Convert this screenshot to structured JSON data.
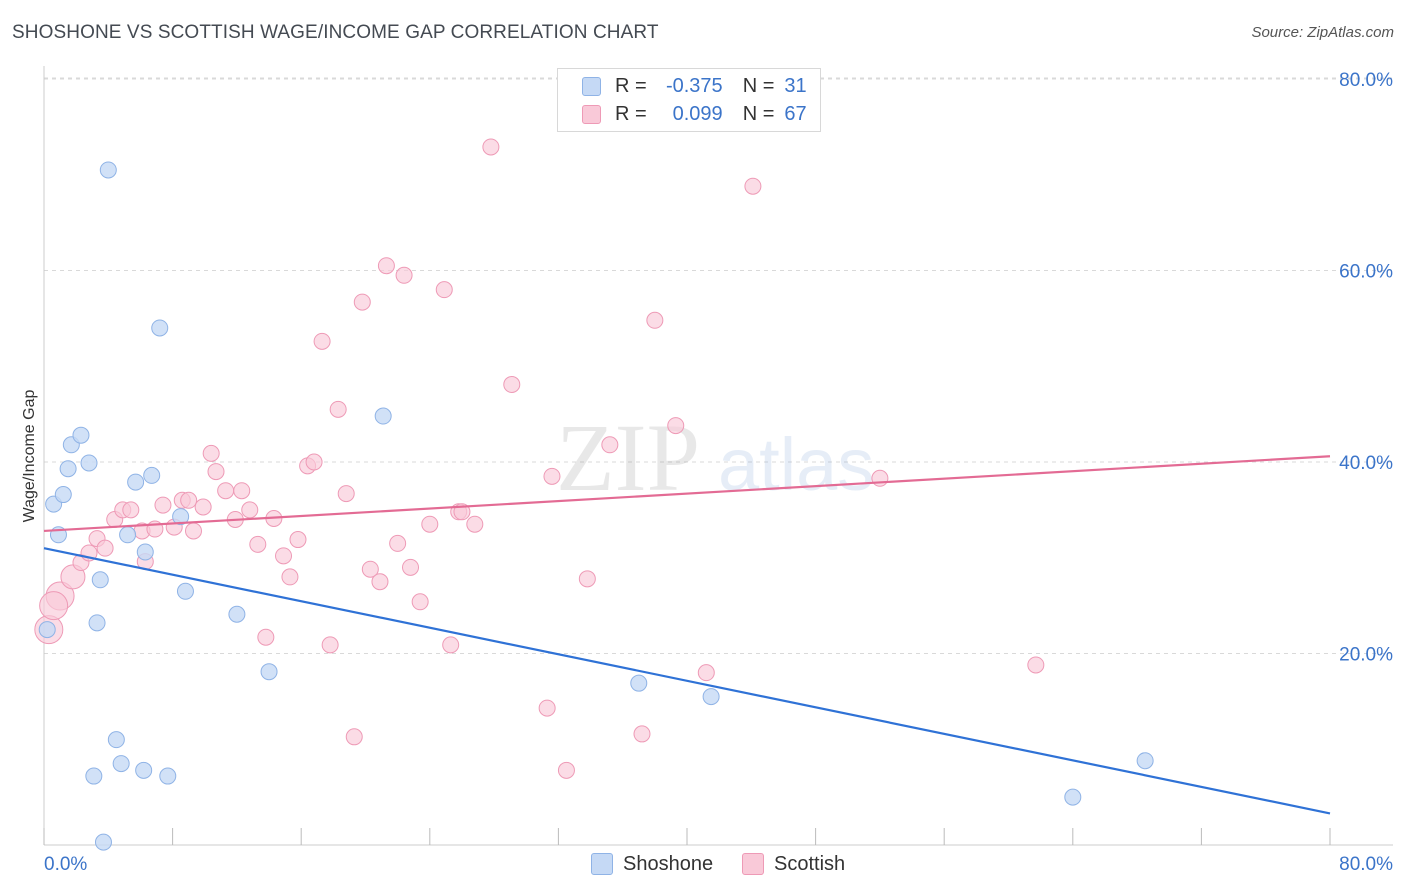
{
  "title": "SHOSHONE VS SCOTTISH WAGE/INCOME GAP CORRELATION CHART",
  "source": "Source: ZipAtlas.com",
  "watermark": {
    "zip": "ZIP",
    "atlas": "atlas"
  },
  "legend": {
    "r_label": "R =",
    "n_label": "N =",
    "rows": [
      {
        "name": "Shoshone",
        "r": "-0.375",
        "n": "31"
      },
      {
        "name": "Scottish",
        "r": "0.099",
        "n": "67"
      }
    ]
  },
  "colors": {
    "shoshone_fill": "#c5d9f5",
    "shoshone_stroke": "#8fb3e6",
    "shoshone_line": "#2f72d6",
    "scottish_fill": "#f9c9d8",
    "scottish_stroke": "#ee9ab6",
    "scottish_line": "#e36b94",
    "tick_text": "#3b74c9",
    "grid": "#d9d9d9"
  },
  "chart_data": {
    "type": "scatter",
    "title": "SHOSHONE VS SCOTTISH WAGE/INCOME GAP CORRELATION CHART",
    "xlabel": "",
    "ylabel": "Wage/Income Gap",
    "xlim": [
      0,
      80
    ],
    "ylim": [
      0,
      80
    ],
    "x_tick_labels": [
      "0.0%",
      "80.0%"
    ],
    "y_ticks": [
      20,
      40,
      60,
      80
    ],
    "y_tick_labels": [
      "20.0%",
      "40.0%",
      "60.0%",
      "80.0%"
    ],
    "grid": true,
    "legend_position": "top-center",
    "series": [
      {
        "name": "Shoshone",
        "points": [
          [
            0.6,
            35.6
          ],
          [
            0.9,
            32.4
          ],
          [
            1.2,
            36.6
          ],
          [
            1.5,
            39.3
          ],
          [
            1.7,
            41.8
          ],
          [
            2.3,
            42.8
          ],
          [
            2.8,
            39.9
          ],
          [
            3.5,
            27.7
          ],
          [
            3.3,
            23.2
          ],
          [
            4.0,
            70.5
          ],
          [
            5.2,
            32.4
          ],
          [
            5.7,
            37.9
          ],
          [
            6.3,
            30.6
          ],
          [
            6.7,
            38.6
          ],
          [
            7.2,
            54.0
          ],
          [
            8.5,
            34.3
          ],
          [
            8.8,
            26.5
          ],
          [
            12.0,
            24.1
          ],
          [
            14.0,
            18.1
          ],
          [
            21.1,
            44.8
          ],
          [
            4.5,
            11.0
          ],
          [
            4.8,
            8.5
          ],
          [
            6.2,
            7.8
          ],
          [
            7.7,
            7.2
          ],
          [
            3.1,
            7.2
          ],
          [
            3.7,
            0.3
          ],
          [
            0.2,
            22.5
          ],
          [
            37.0,
            16.9
          ],
          [
            41.5,
            15.5
          ],
          [
            64.0,
            5.0
          ],
          [
            68.5,
            8.8
          ]
        ],
        "trend": {
          "x": [
            0,
            80
          ],
          "y": [
            31.0,
            3.3
          ]
        }
      },
      {
        "name": "Scottish",
        "points": [
          [
            0.3,
            22.5
          ],
          [
            1.0,
            26.0
          ],
          [
            1.8,
            28.0
          ],
          [
            2.3,
            29.5
          ],
          [
            2.8,
            30.5
          ],
          [
            3.3,
            32.0
          ],
          [
            3.8,
            31.0
          ],
          [
            4.4,
            34.0
          ],
          [
            4.9,
            35.0
          ],
          [
            5.4,
            35.0
          ],
          [
            6.1,
            32.8
          ],
          [
            6.3,
            29.6
          ],
          [
            6.9,
            33.0
          ],
          [
            7.4,
            35.5
          ],
          [
            8.1,
            33.2
          ],
          [
            8.6,
            36.0
          ],
          [
            9.0,
            36.0
          ],
          [
            9.3,
            32.8
          ],
          [
            9.9,
            35.3
          ],
          [
            10.4,
            40.9
          ],
          [
            10.7,
            39.0
          ],
          [
            11.3,
            37.0
          ],
          [
            11.9,
            34.0
          ],
          [
            12.3,
            37.0
          ],
          [
            12.8,
            35.0
          ],
          [
            13.3,
            31.4
          ],
          [
            13.8,
            21.7
          ],
          [
            14.3,
            34.1
          ],
          [
            14.9,
            30.2
          ],
          [
            15.3,
            28.0
          ],
          [
            15.8,
            31.9
          ],
          [
            16.4,
            39.6
          ],
          [
            16.8,
            40.0
          ],
          [
            17.3,
            52.6
          ],
          [
            17.8,
            20.9
          ],
          [
            18.3,
            45.5
          ],
          [
            18.8,
            36.7
          ],
          [
            19.3,
            11.3
          ],
          [
            19.8,
            56.7
          ],
          [
            20.3,
            28.8
          ],
          [
            20.9,
            27.5
          ],
          [
            21.3,
            60.5
          ],
          [
            22.0,
            31.5
          ],
          [
            22.4,
            59.5
          ],
          [
            22.8,
            29.0
          ],
          [
            23.4,
            25.4
          ],
          [
            24.0,
            33.5
          ],
          [
            24.9,
            58.0
          ],
          [
            25.3,
            20.9
          ],
          [
            25.8,
            34.8
          ],
          [
            26.0,
            34.8
          ],
          [
            26.8,
            33.5
          ],
          [
            27.8,
            72.9
          ],
          [
            29.1,
            48.1
          ],
          [
            31.3,
            14.3
          ],
          [
            31.6,
            38.5
          ],
          [
            32.5,
            7.8
          ],
          [
            33.8,
            27.8
          ],
          [
            35.2,
            41.8
          ],
          [
            37.2,
            11.6
          ],
          [
            38.0,
            54.8
          ],
          [
            39.3,
            43.8
          ],
          [
            41.2,
            18.0
          ],
          [
            44.1,
            68.8
          ],
          [
            52.0,
            38.3
          ],
          [
            61.7,
            18.8
          ],
          [
            0.6,
            25.0
          ]
        ],
        "trend": {
          "x": [
            0,
            80
          ],
          "y": [
            32.8,
            40.6
          ]
        }
      }
    ]
  }
}
